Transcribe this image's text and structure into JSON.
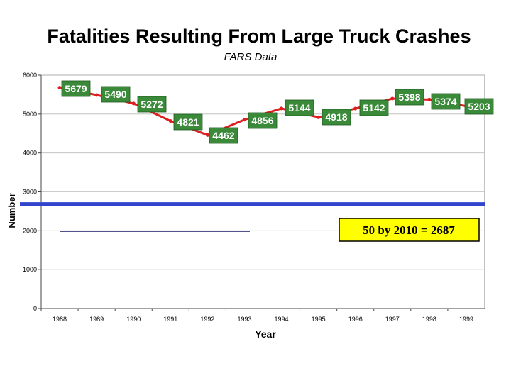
{
  "chart_data": {
    "type": "line",
    "title": "Fatalities Resulting From Large Truck Crashes",
    "subtitle": "FARS Data",
    "xlabel": "Year",
    "ylabel": "Number",
    "ylim": [
      0,
      6000
    ],
    "yticks": [
      0,
      1000,
      2000,
      3000,
      4000,
      5000,
      6000
    ],
    "categories": [
      "1988",
      "1989",
      "1990",
      "1991",
      "1992",
      "1993",
      "1994",
      "1995",
      "1996",
      "1997",
      "1998",
      "1999"
    ],
    "series": [
      {
        "name": "Fatalities",
        "values": [
          5679,
          5490,
          5272,
          4821,
          4462,
          4856,
          5144,
          4918,
          5142,
          5398,
          5374,
          5203
        ]
      }
    ],
    "data_labels": [
      "5679",
      "5490",
      "5272",
      "4821",
      "4462",
      "4856",
      "5144",
      "4918",
      "5142",
      "5398",
      "5374",
      "5203"
    ],
    "grid": true,
    "target": {
      "value": 2687,
      "label": "50 by 2010 = 2687"
    },
    "colors": {
      "line": "#dd1f1f",
      "label_fill": "#3a8a3a",
      "target_line": "#3344cc",
      "target_box": "#ffff00",
      "plot_bg": "#ffffff"
    }
  }
}
